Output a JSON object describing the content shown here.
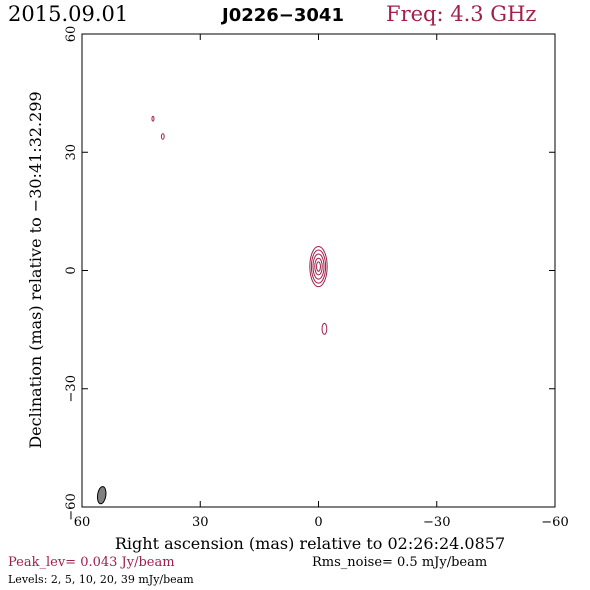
{
  "header": {
    "date": "2015.09.01",
    "source": "J0226−3041",
    "frequency": "Freq: 4.3 GHz"
  },
  "footer": {
    "peak": "Peak_lev=  0.043 Jy/beam",
    "rms": "Rms_noise=   0.5 mJy/beam",
    "levels": "Levels:   2,    5,   10,   20,   39 mJy/beam"
  },
  "colors": {
    "contour": "#a0204a",
    "beam": "#808080"
  },
  "chart_data": {
    "type": "contour",
    "title": "J0226−3041",
    "xlabel": "Right ascension (mas) relative to 02:26:24.0857",
    "ylabel": "Declination (mas) relative to −30:41:32.299",
    "xlim": [
      60,
      -60
    ],
    "ylim": [
      -60,
      60
    ],
    "xticks": [
      60,
      30,
      0,
      -30,
      -60
    ],
    "yticks": [
      -60,
      -30,
      0,
      30,
      60
    ],
    "xtick_labels": [
      "60",
      "30",
      "0",
      "−30",
      "−60"
    ],
    "ytick_labels": [
      "−60",
      "−30",
      "0",
      "30",
      "60"
    ],
    "levels_mJy": [
      2,
      5,
      10,
      20,
      39
    ],
    "peak_Jy_per_beam": 0.043,
    "rms_mJy_per_beam": 0.5,
    "core": {
      "x": 0,
      "y": 1,
      "contours": [
        {
          "level": 2,
          "width": 4.4,
          "height": 10.2
        },
        {
          "level": 5,
          "width": 3.6,
          "height": 8.4
        },
        {
          "level": 10,
          "width": 2.8,
          "height": 6.4
        },
        {
          "level": 20,
          "width": 1.9,
          "height": 4.2
        },
        {
          "level": 39,
          "width": 1.0,
          "height": 2.4
        }
      ]
    },
    "features": [
      {
        "x": 42,
        "y": 38.5,
        "width": 0.5,
        "height": 1.2
      },
      {
        "x": 39.5,
        "y": 34,
        "width": 0.7,
        "height": 1.4
      },
      {
        "x": -1.5,
        "y": -14.8,
        "width": 1.2,
        "height": 2.8
      }
    ],
    "beam": {
      "x": 55,
      "y": -57,
      "major": 4.4,
      "minor": 2.1,
      "pa_deg": 8
    }
  }
}
